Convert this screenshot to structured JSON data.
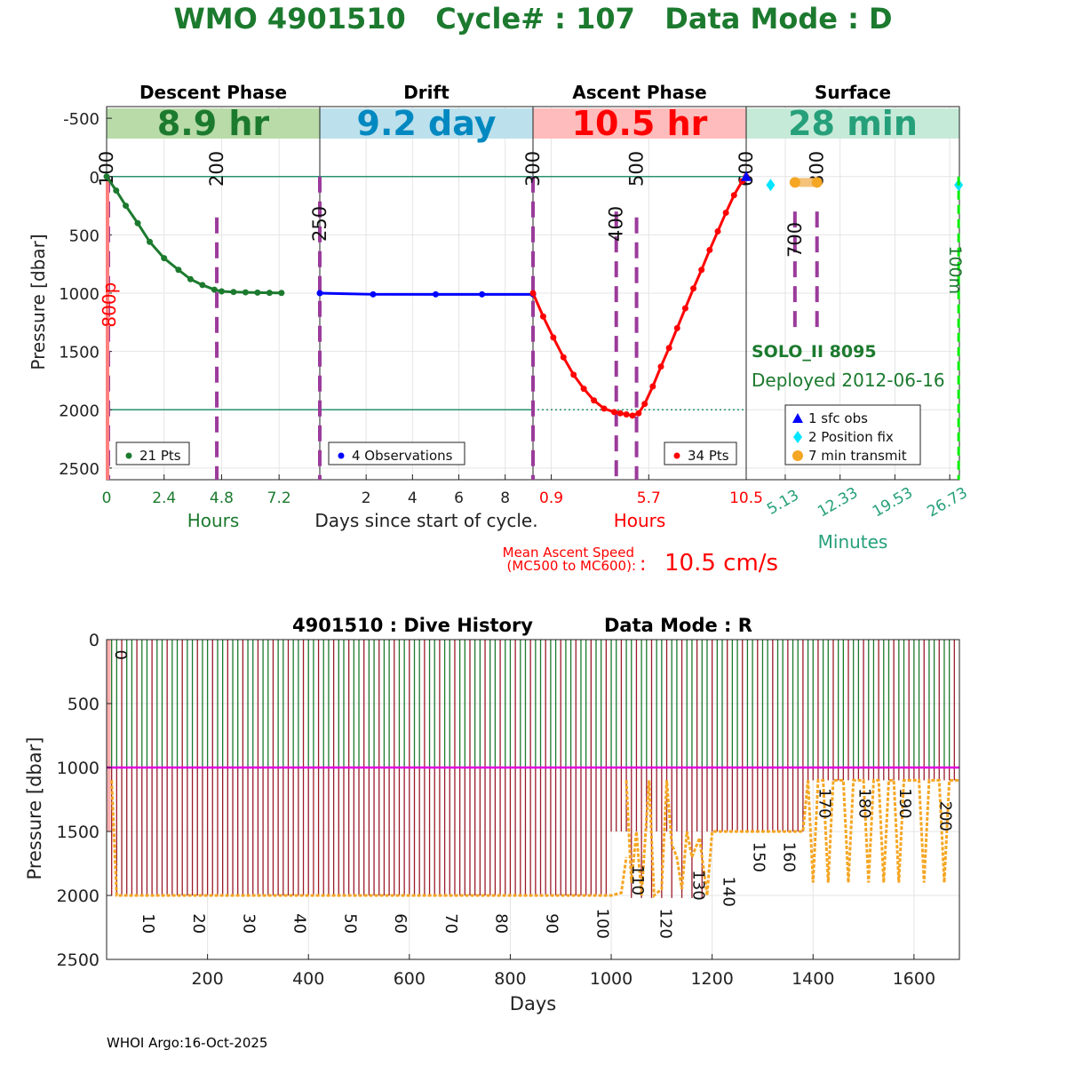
{
  "title": "WMO 4901510   Cycle# : 107   Data Mode : D",
  "footer": "WHOI Argo:16-Oct-2025",
  "colors": {
    "green": "#1c7a2e",
    "blue": "#0000ff",
    "red": "#ff0000",
    "teal": "#26a07a",
    "purple": "#9b3b9b",
    "cyan": "#00e5ff",
    "orange": "#f5a623",
    "lime": "#00ee00",
    "magenta": "#e000e0",
    "darkred": "#9b1b2b"
  },
  "chart_data": [
    {
      "type": "line",
      "name": "cycle-profile",
      "ylabel": "Pressure [dbar]",
      "ylim": [
        -600,
        2600
      ],
      "yticks": [
        "-500",
        "0",
        "500",
        "1000",
        "1500",
        "2000",
        "2500"
      ],
      "ytick_values": [
        -500,
        0,
        500,
        1000,
        1500,
        2000,
        2500
      ],
      "phases": [
        {
          "header": "Descent Phase",
          "duration": "8.9 hr",
          "band_color": "#b8dba8",
          "text_color": "#1c7a2e"
        },
        {
          "header": "Drift",
          "duration": "9.2 day",
          "band_color": "#bce0ec",
          "text_color": "#0088c0"
        },
        {
          "header": "Ascent Phase",
          "duration": "10.5 hr",
          "band_color": "#ffbcbc",
          "text_color": "#ff0000"
        },
        {
          "header": "Surface",
          "duration": "28 min",
          "band_color": "#c6ead8",
          "text_color": "#26a07a"
        }
      ],
      "descent": {
        "x": [
          0,
          0.4,
          0.8,
          1.3,
          1.8,
          2.4,
          3.0,
          3.5,
          4.0,
          4.5,
          4.8,
          5.3,
          5.8,
          6.3,
          6.8,
          7.3
        ],
        "y": [
          0,
          120,
          250,
          400,
          560,
          700,
          800,
          880,
          930,
          970,
          985,
          990,
          993,
          995,
          997,
          998
        ],
        "xlim": [
          0,
          8.9
        ],
        "xticks": [
          "0",
          "2.4",
          "4.8",
          "7.2"
        ],
        "xtick_values": [
          0,
          2.4,
          4.8,
          7.2
        ],
        "xlabel": "Hours",
        "legend": "21 Pts",
        "mc_labels": [
          {
            "label": "100",
            "x": 0
          },
          {
            "label": "200",
            "x": 4.6
          }
        ],
        "vlines": [
          0,
          4.6
        ]
      },
      "drift": {
        "x": [
          0,
          2.3,
          5.0,
          7.0,
          9.2
        ],
        "y": [
          1000,
          1010,
          1010,
          1010,
          1010
        ],
        "xlim": [
          0,
          9.2
        ],
        "xticks": [
          "2",
          "4",
          "6",
          "8"
        ],
        "xtick_values": [
          2,
          4,
          6,
          8
        ],
        "xlabel": "Days since start of cycle.",
        "legend": "4 Observations",
        "mc_labels": [
          {
            "label": "250",
            "x": 0
          }
        ]
      },
      "ascent": {
        "x": [
          0,
          0.5,
          1.0,
          1.5,
          2.0,
          2.5,
          3.0,
          3.5,
          4.0,
          4.3,
          4.6,
          4.9,
          5.2,
          5.5,
          5.9,
          6.3,
          6.7,
          7.1,
          7.5,
          7.9,
          8.3,
          8.7,
          9.1,
          9.5,
          9.9,
          10.3,
          10.5
        ],
        "y": [
          1000,
          1200,
          1380,
          1550,
          1700,
          1820,
          1920,
          1990,
          2020,
          2030,
          2040,
          2050,
          2030,
          1950,
          1800,
          1630,
          1470,
          1300,
          1130,
          960,
          800,
          630,
          470,
          310,
          160,
          40,
          0
        ],
        "xlim": [
          0,
          10.5
        ],
        "xticks": [
          "0.9",
          "5.7",
          "10.5"
        ],
        "xtick_values": [
          0.9,
          5.7,
          10.5
        ],
        "xlabel": "Hours",
        "legend": "34 Pts",
        "mc_labels": [
          {
            "label": "300",
            "x": 0
          },
          {
            "label": "400",
            "x": 4.1
          },
          {
            "label": "500",
            "x": 5.1
          },
          {
            "label": "600",
            "x": 10.5
          }
        ],
        "vlines": [
          0,
          4.1,
          5.1
        ]
      },
      "surface": {
        "xlim": [
          0,
          28
        ],
        "xticks": [
          "5.13",
          "12.33",
          "19.53",
          "26.73"
        ],
        "xtick_values": [
          5.13,
          12.33,
          19.53,
          26.73
        ],
        "xlabel": "Minutes",
        "mc_labels": [
          {
            "label": "700",
            "x": 6.4
          },
          {
            "label": "800",
            "x": 9.3
          }
        ],
        "vlines": [
          6.4,
          9.3
        ],
        "green_vline": 27.9,
        "green_label": "100m",
        "sfc_obs": {
          "x": 0,
          "y": 0
        },
        "position_fix": [
          {
            "x": 3.2,
            "y": -50
          },
          {
            "x": 27.9,
            "y": -50
          }
        ],
        "transmit": {
          "x": [
            6.4,
            9.3
          ],
          "y": 50
        },
        "float_name": "SOLO_II 8095",
        "deployed": "Deployed 2012-06-16",
        "legend": [
          "1 sfc obs",
          "2 Position fix",
          "7 min transmit"
        ]
      },
      "hlines": [
        0,
        2000
      ],
      "descent_red_label": "800p",
      "mean_ascent_label_line1": "Mean Ascent Speed",
      "mean_ascent_label_line2": "(MC500 to MC600):",
      "mean_ascent_value": "10.5 cm/s"
    },
    {
      "type": "bar",
      "name": "dive-history",
      "title": "4901510 : Dive History      Data Mode : R",
      "xlabel": "Days",
      "ylabel": "Pressure [dbar]",
      "xlim": [
        0,
        1690
      ],
      "ylim": [
        0,
        2500
      ],
      "xticks": [
        "200",
        "400",
        "600",
        "800",
        "1000",
        "1200",
        "1400",
        "1600"
      ],
      "xtick_values": [
        200,
        400,
        600,
        800,
        1000,
        1200,
        1400,
        1600
      ],
      "yticks": [
        "0",
        "500",
        "1000",
        "1500",
        "2000",
        "2500"
      ],
      "ytick_values": [
        0,
        500,
        1000,
        1500,
        2000,
        2500
      ],
      "cycle_labels": [
        {
          "label": "0",
          "x": 5,
          "y": 120
        },
        {
          "label": "10",
          "x": 60,
          "y": 2220
        },
        {
          "label": "20",
          "x": 160,
          "y": 2220
        },
        {
          "label": "30",
          "x": 260,
          "y": 2220
        },
        {
          "label": "40",
          "x": 360,
          "y": 2220
        },
        {
          "label": "50",
          "x": 460,
          "y": 2220
        },
        {
          "label": "60",
          "x": 560,
          "y": 2220
        },
        {
          "label": "70",
          "x": 660,
          "y": 2220
        },
        {
          "label": "80",
          "x": 760,
          "y": 2220
        },
        {
          "label": "90",
          "x": 860,
          "y": 2220
        },
        {
          "label": "100",
          "x": 960,
          "y": 2220
        },
        {
          "label": "110",
          "x": 1030,
          "y": 1880
        },
        {
          "label": "120",
          "x": 1085,
          "y": 2220
        },
        {
          "label": "130",
          "x": 1150,
          "y": 1920
        },
        {
          "label": "140",
          "x": 1210,
          "y": 1970
        },
        {
          "label": "150",
          "x": 1270,
          "y": 1700
        },
        {
          "label": "160",
          "x": 1330,
          "y": 1700
        },
        {
          "label": "170",
          "x": 1400,
          "y": 1280
        },
        {
          "label": "180",
          "x": 1480,
          "y": 1280
        },
        {
          "label": "190",
          "x": 1560,
          "y": 1280
        },
        {
          "label": "200",
          "x": 1640,
          "y": 1380
        }
      ],
      "drift_pressure": 1000,
      "orange_segments": [
        {
          "x": [
            10,
            20,
            1000,
            1020,
            1030
          ],
          "y": [
            1100,
            2000,
            2000,
            1980,
            1700
          ]
        },
        {
          "x": [
            1030,
            1040,
            1050,
            1060
          ],
          "y": [
            1100,
            1900,
            1500,
            2000
          ]
        },
        {
          "x": [
            1060,
            1075,
            1085,
            1100,
            1110,
            1120,
            1130,
            1140,
            1150,
            1160,
            1175,
            1190,
            1200,
            1380,
            1390
          ],
          "y": [
            2000,
            1100,
            2000,
            1950,
            1100,
            1600,
            1700,
            1950,
            1500,
            1700,
            1550,
            2000,
            1500,
            1500,
            1100
          ]
        },
        {
          "x": [
            1390,
            1400,
            1410,
            1420,
            1430,
            1440,
            1450,
            1460,
            1470,
            1480,
            1490,
            1500,
            1510,
            1520,
            1530,
            1540,
            1550,
            1560,
            1570,
            1580,
            1590,
            1600,
            1610,
            1620,
            1630,
            1640,
            1650,
            1660,
            1670,
            1690
          ],
          "y": [
            1100,
            1900,
            1100,
            1100,
            1900,
            1100,
            1100,
            1100,
            1900,
            1100,
            1100,
            1100,
            1900,
            1100,
            1100,
            1900,
            1100,
            1100,
            1900,
            1100,
            1100,
            1100,
            1100,
            1900,
            1100,
            1100,
            1100,
            1900,
            1100,
            1100
          ]
        }
      ],
      "pink_rect": {
        "x": [
          0,
          8
        ],
        "y": [
          0,
          1500
        ]
      }
    }
  ]
}
